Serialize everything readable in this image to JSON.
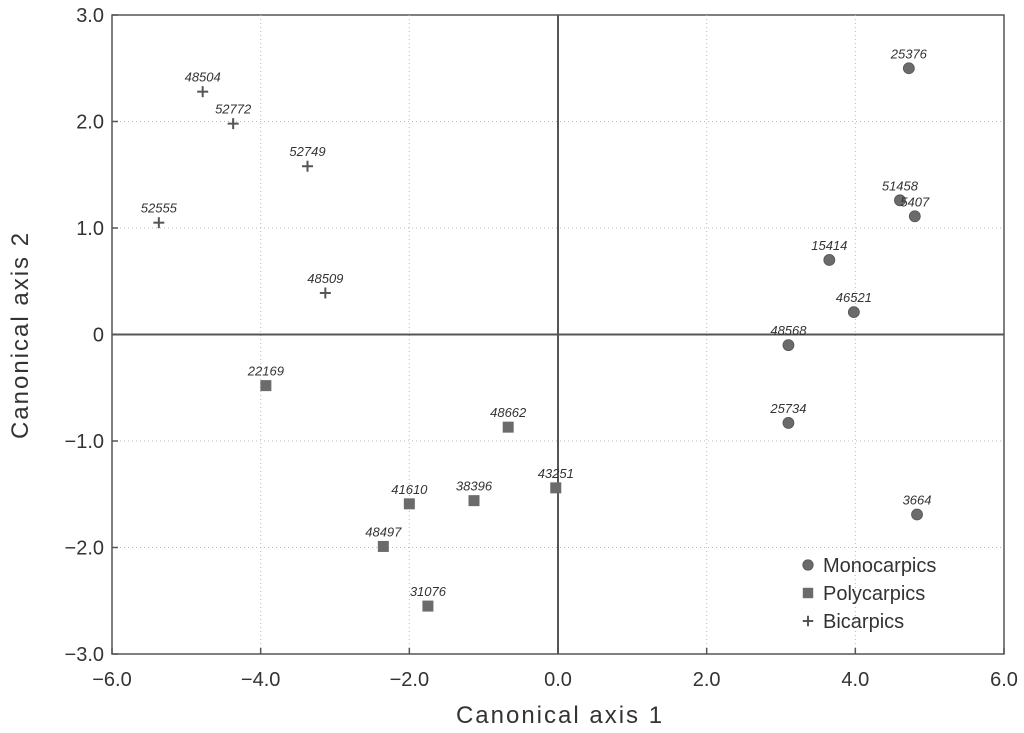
{
  "chart_data": {
    "type": "scatter",
    "xlabel": "Canonical axis 1",
    "ylabel": "Canonical axis 2",
    "xlim": [
      -6.0,
      6.0
    ],
    "ylim": [
      -3.0,
      3.0
    ],
    "xticks": [
      -6.0,
      -4.0,
      -2.0,
      0.0,
      2.0,
      4.0,
      6.0
    ],
    "xtick_labels": [
      "−6.0",
      "−4.0",
      "−2.0",
      "0.0",
      "2.0",
      "4.0",
      "6.0"
    ],
    "yticks": [
      3.0,
      2.0,
      1.0,
      0,
      -1.0,
      -2.0,
      -3.0
    ],
    "ytick_labels": [
      "3.0",
      "2.0",
      "1.0",
      "0",
      "−1.0",
      "−2.0",
      "−3.0"
    ],
    "grid": true,
    "zero_lines": true,
    "legend_position": "bottom-right",
    "series": [
      {
        "name": "Monocarpics",
        "marker": "circle",
        "color": "#6b6b6b",
        "points": [
          {
            "label": "25376",
            "x": 4.72,
            "y": 2.5
          },
          {
            "label": "51458",
            "x": 4.6,
            "y": 1.26
          },
          {
            "label": "5407",
            "x": 4.8,
            "y": 1.11
          },
          {
            "label": "15414",
            "x": 3.65,
            "y": 0.7
          },
          {
            "label": "46521",
            "x": 3.98,
            "y": 0.21
          },
          {
            "label": "48568",
            "x": 3.1,
            "y": -0.1
          },
          {
            "label": "25734",
            "x": 3.1,
            "y": -0.83
          },
          {
            "label": "3664",
            "x": 4.83,
            "y": -1.69
          }
        ]
      },
      {
        "name": "Polycarpics",
        "marker": "square",
        "color": "#6b6b6b",
        "points": [
          {
            "label": "22169",
            "x": -3.93,
            "y": -0.48
          },
          {
            "label": "48662",
            "x": -0.67,
            "y": -0.87
          },
          {
            "label": "43251",
            "x": -0.03,
            "y": -1.44
          },
          {
            "label": "41610",
            "x": -2.0,
            "y": -1.59
          },
          {
            "label": "38396",
            "x": -1.13,
            "y": -1.56
          },
          {
            "label": "48497",
            "x": -2.35,
            "y": -1.99
          },
          {
            "label": "31076",
            "x": -1.75,
            "y": -2.55
          }
        ]
      },
      {
        "name": "Bicarpics",
        "marker": "plus",
        "color": "#555555",
        "points": [
          {
            "label": "48504",
            "x": -4.78,
            "y": 2.28
          },
          {
            "label": "52772",
            "x": -4.37,
            "y": 1.98
          },
          {
            "label": "52749",
            "x": -3.37,
            "y": 1.58
          },
          {
            "label": "52555",
            "x": -5.37,
            "y": 1.05
          },
          {
            "label": "48509",
            "x": -3.13,
            "y": 0.39
          }
        ]
      }
    ]
  }
}
